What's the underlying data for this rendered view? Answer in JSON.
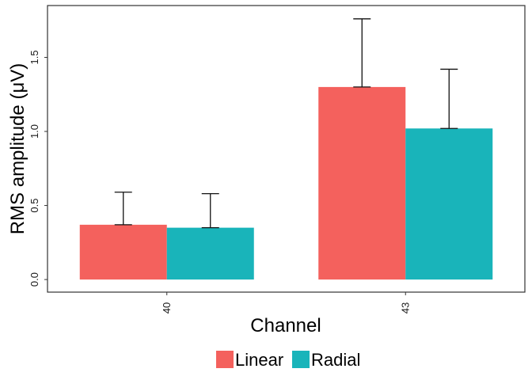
{
  "chart_data": {
    "type": "bar",
    "xlabel": "Channel",
    "ylabel": "RMS amplitude (μV)",
    "categories": [
      "40",
      "43"
    ],
    "series": [
      {
        "name": "Linear",
        "color": "#F4615D",
        "values": [
          0.37,
          1.3
        ],
        "error_upper": [
          0.59,
          1.76
        ]
      },
      {
        "name": "Radial",
        "color": "#19B4BA",
        "values": [
          0.35,
          1.02
        ],
        "error_upper": [
          0.58,
          1.42
        ]
      }
    ],
    "ylim": [
      -0.085,
      1.85
    ],
    "yticks": [
      "0.0",
      "0.5",
      "1.0",
      "1.5"
    ],
    "ytick_values": [
      0.0,
      0.5,
      1.0,
      1.5
    ],
    "grid": false,
    "legend_position": "bottom"
  }
}
